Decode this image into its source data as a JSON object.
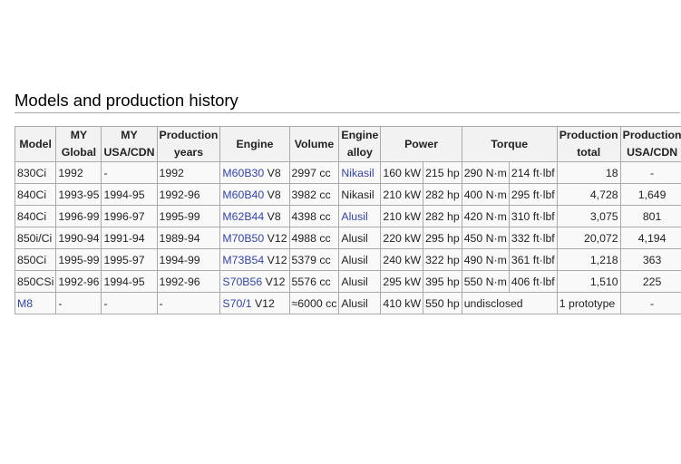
{
  "heading": "Models and production history",
  "headers": {
    "model": "Model",
    "my_global": "MY Global",
    "my_usa": "MY USA/CDN",
    "prod_years": "Production years",
    "engine": "Engine",
    "volume": "Volume",
    "alloy": "Engine alloy",
    "power": "Power",
    "torque": "Torque",
    "prod_total": "Production total",
    "prod_usa": "Production USA/CDN"
  },
  "rows": [
    {
      "model": "830Ci",
      "my_global": "1992",
      "my_usa": "-",
      "prod_years": "1992",
      "engine_code": "M60B30",
      "engine_type": "V8",
      "volume": "2997 cc",
      "alloy": "Nikasil",
      "kw": "160 kW",
      "hp": "215 hp",
      "nm": "290 N·m",
      "ftlbf": "214 ft·lbf",
      "prod_total": "18",
      "prod_usa": "-"
    },
    {
      "model": "840Ci",
      "my_global": "1993-95",
      "my_usa": "1994-95",
      "prod_years": "1992-96",
      "engine_code": "M60B40",
      "engine_type": "V8",
      "volume": "3982 cc",
      "alloy": "Nikasil",
      "kw": "210 kW",
      "hp": "282 hp",
      "nm": "400 N·m",
      "ftlbf": "295 ft·lbf",
      "prod_total": "4,728",
      "prod_usa": "1,649"
    },
    {
      "model": "840Ci",
      "my_global": "1996-99",
      "my_usa": "1996-97",
      "prod_years": "1995-99",
      "engine_code": "M62B44",
      "engine_type": "V8",
      "volume": "4398 cc",
      "alloy": "Alusil",
      "kw": "210 kW",
      "hp": "282 hp",
      "nm": "420 N·m",
      "ftlbf": "310 ft·lbf",
      "prod_total": "3,075",
      "prod_usa": "801"
    },
    {
      "model": "850i/Ci",
      "my_global": "1990-94",
      "my_usa": "1991-94",
      "prod_years": "1989-94",
      "engine_code": "M70B50",
      "engine_type": "V12",
      "volume": "4988 cc",
      "alloy": "Alusil",
      "kw": "220 kW",
      "hp": "295 hp",
      "nm": "450 N·m",
      "ftlbf": "332 ft·lbf",
      "prod_total": "20,072",
      "prod_usa": "4,194"
    },
    {
      "model": "850Ci",
      "my_global": "1995-99",
      "my_usa": "1995-97",
      "prod_years": "1994-99",
      "engine_code": "M73B54",
      "engine_type": "V12",
      "volume": "5379 cc",
      "alloy": "Alusil",
      "kw": "240 kW",
      "hp": "322 hp",
      "nm": "490 N·m",
      "ftlbf": "361 ft·lbf",
      "prod_total": "1,218",
      "prod_usa": "363"
    },
    {
      "model": "850CSi",
      "my_global": "1992-96",
      "my_usa": "1994-95",
      "prod_years": "1992-96",
      "engine_code": "S70B56",
      "engine_type": "V12",
      "volume": "5576 cc",
      "alloy": "Alusil",
      "kw": "295 kW",
      "hp": "395 hp",
      "nm": "550 N·m",
      "ftlbf": "406 ft·lbf",
      "prod_total": "1,510",
      "prod_usa": "225"
    },
    {
      "model": "M8",
      "my_global": "-",
      "my_usa": "-",
      "prod_years": "-",
      "engine_code": "S70/1",
      "engine_type": "V12",
      "volume": "≈6000 cc",
      "alloy": "Alusil",
      "kw": "410 kW",
      "hp": "550 hp",
      "torque": "undisclosed",
      "prod_total": "1 prototype",
      "prod_usa": "-"
    }
  ]
}
